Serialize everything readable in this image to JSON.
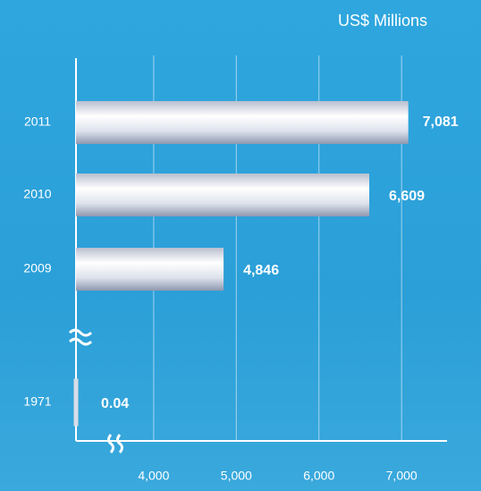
{
  "chart_data": {
    "type": "bar",
    "orientation": "horizontal",
    "title": "US$ Millions",
    "categories": [
      "2011",
      "2010",
      "2009",
      "1971"
    ],
    "values": [
      7081,
      6609,
      4846,
      0.04
    ],
    "value_labels": [
      "7,081",
      "6,609",
      "4,846",
      "0.04"
    ],
    "xlim": [
      3060,
      7550
    ],
    "xticks": [
      {
        "value": 4000,
        "label": "4,000"
      },
      {
        "value": 5000,
        "label": "5,000"
      },
      {
        "value": 6000,
        "label": "6,000"
      },
      {
        "value": 7000,
        "label": "7,000"
      }
    ],
    "grid": true,
    "axis_break": true
  }
}
